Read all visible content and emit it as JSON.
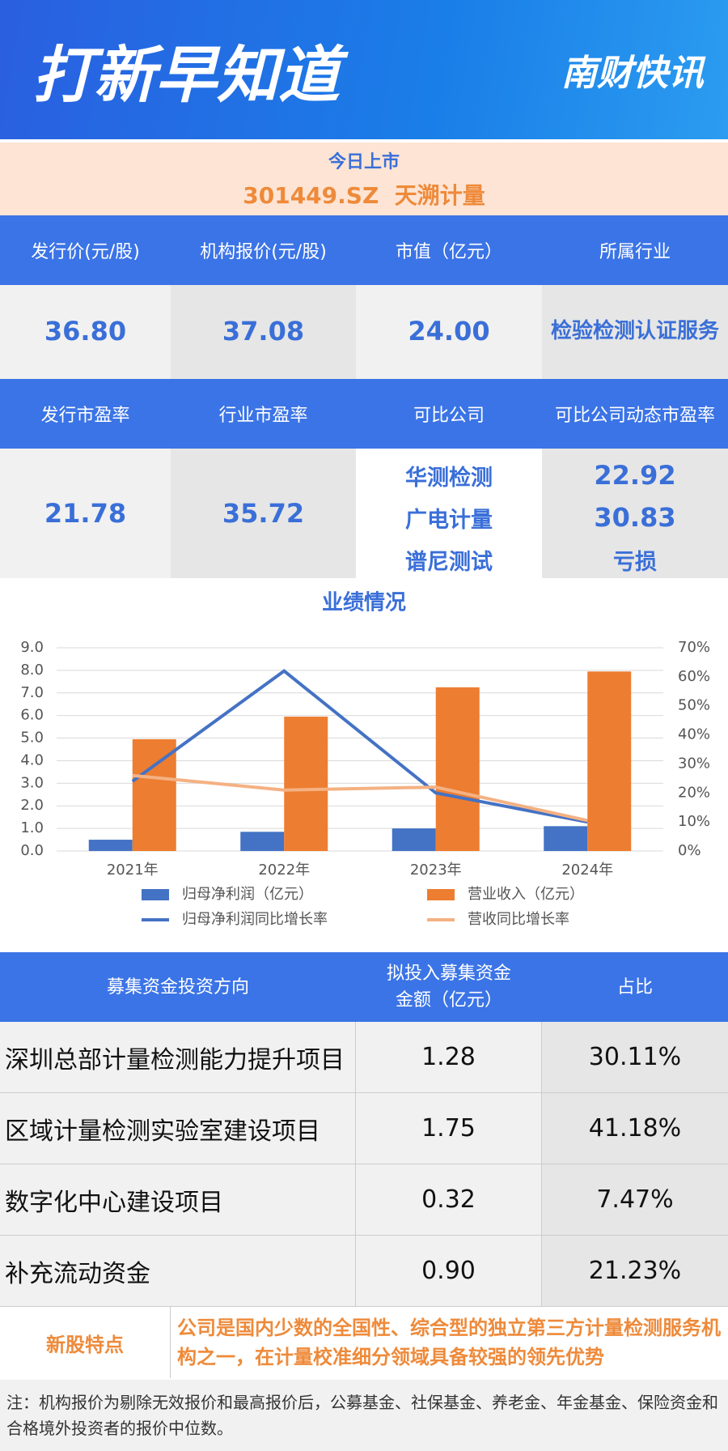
{
  "header": {
    "title": "打新早知道",
    "brand": "南财快讯"
  },
  "listing": {
    "label": "今日上市",
    "stock": "301449.SZ  天溯计量"
  },
  "summary1": {
    "headers": [
      "发行价(元/股)",
      "机构报价(元/股)",
      "市值（亿元）",
      "所属行业"
    ],
    "values": [
      "36.80",
      "37.08",
      "24.00",
      "检验检测认证服务"
    ]
  },
  "summary2": {
    "headers": [
      "发行市盈率",
      "行业市盈率",
      "可比公司",
      "可比公司动态市盈率"
    ],
    "values": [
      "21.78",
      "35.72"
    ],
    "peers": [
      "华测检测",
      "广电计量",
      "谱尼测试"
    ],
    "peer_pe": [
      "22.92",
      "30.83",
      "亏损"
    ]
  },
  "chart_data": {
    "type": "bar_line",
    "title": "业绩情况",
    "categories": [
      "2021年",
      "2022年",
      "2023年",
      "2024年"
    ],
    "series": [
      {
        "name": "归母净利润（亿元）",
        "type": "bar",
        "color": "#4472c4",
        "values": [
          0.5,
          0.85,
          1.0,
          1.1
        ]
      },
      {
        "name": "营业收入（亿元）",
        "type": "bar",
        "color": "#ed7d31",
        "values": [
          4.95,
          5.95,
          7.25,
          7.95
        ]
      },
      {
        "name": "归母净利润同比增长率",
        "type": "line",
        "axis": "y2",
        "color": "#4472c4",
        "values": [
          24,
          62,
          20,
          10
        ]
      },
      {
        "name": "营收同比增长率",
        "type": "line",
        "axis": "y2",
        "color": "#f4b183",
        "values": [
          26,
          21,
          22,
          10.5
        ]
      }
    ],
    "ylim": [
      0,
      9
    ],
    "yticks": [
      {
        "value": 0,
        "label": "0.0"
      },
      {
        "value": 1,
        "label": "1.0"
      },
      {
        "value": 2,
        "label": "2.0"
      },
      {
        "value": 3,
        "label": "3.0"
      },
      {
        "value": 4,
        "label": "4.0"
      },
      {
        "value": 5,
        "label": "5.0"
      },
      {
        "value": 6,
        "label": "6.0"
      },
      {
        "value": 7,
        "label": "7.0"
      },
      {
        "value": 8,
        "label": "8.0"
      },
      {
        "value": 9,
        "label": "9.0"
      }
    ],
    "y2lim": [
      0,
      70
    ],
    "y2ticks": [
      {
        "value": 0,
        "label": "0%"
      },
      {
        "value": 10,
        "label": "10%"
      },
      {
        "value": 20,
        "label": "20%"
      },
      {
        "value": 30,
        "label": "30%"
      },
      {
        "value": 40,
        "label": "40%"
      },
      {
        "value": 50,
        "label": "50%"
      },
      {
        "value": 60,
        "label": "60%"
      },
      {
        "value": 70,
        "label": "70%"
      }
    ],
    "grid": true
  },
  "funds": {
    "headers": [
      "募集资金投资方向",
      "拟投入募集资金金额（亿元）",
      "占比"
    ],
    "rows": [
      [
        "深圳总部计量检测能力提升项目",
        "1.28",
        "30.11%"
      ],
      [
        "区域计量检测实验室建设项目",
        "1.75",
        "41.18%"
      ],
      [
        "数字化中心建设项目",
        "0.32",
        "7.47%"
      ],
      [
        "补充流动资金",
        "0.90",
        "21.23%"
      ]
    ]
  },
  "feature": {
    "label": "新股特点",
    "text": "公司是国内少数的全国性、综合型的独立第三方计量检测服务机构之一，在计量校准细分领域具备较强的领先优势"
  },
  "note": "注：机构报价为剔除无效报价和最高报价后，公募基金、社保基金、养老金、年金基金、保险资金和合格境外投资者的报价中位数。"
}
